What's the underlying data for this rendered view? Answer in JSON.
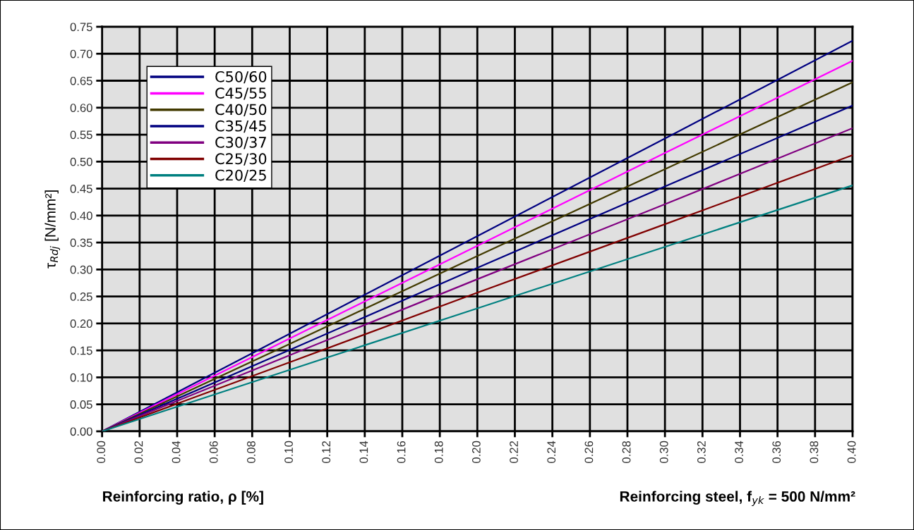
{
  "chart_data": {
    "type": "line",
    "xlabel": "Reinforcing ratio, ρ [%]",
    "ylabel": "τ$_{Rdj}$ [N/mm²]",
    "annotations": [
      "Reinforcing steel, f$_{yk}$ = 500 N/mm²"
    ],
    "x": [
      0.0,
      0.1,
      0.2,
      0.3,
      0.4
    ],
    "series": [
      {
        "name": "C50/60",
        "color": "#000080",
        "values": [
          0.0,
          0.181,
          0.362,
          0.543,
          0.724
        ]
      },
      {
        "name": "C45/55",
        "color": "#ff00ff",
        "values": [
          0.0,
          0.172,
          0.344,
          0.516,
          0.687
        ]
      },
      {
        "name": "C40/50",
        "color": "#423a00",
        "values": [
          0.0,
          0.162,
          0.325,
          0.486,
          0.647
        ]
      },
      {
        "name": "C35/45",
        "color": "#000080",
        "values": [
          0.0,
          0.151,
          0.303,
          0.454,
          0.604
        ]
      },
      {
        "name": "C30/37",
        "color": "#800080",
        "values": [
          0.0,
          0.141,
          0.282,
          0.421,
          0.562
        ]
      },
      {
        "name": "C25/30",
        "color": "#800000",
        "values": [
          0.0,
          0.128,
          0.257,
          0.384,
          0.512
        ]
      },
      {
        "name": "C20/25",
        "color": "#008080",
        "values": [
          0.0,
          0.114,
          0.228,
          0.342,
          0.456
        ]
      }
    ],
    "xlim": [
      0.0,
      0.4
    ],
    "xticks": [
      {
        "value": 0.0,
        "label": "0.00"
      },
      {
        "value": 0.02,
        "label": "0.02"
      },
      {
        "value": 0.04,
        "label": "0.04"
      },
      {
        "value": 0.06,
        "label": "0.06"
      },
      {
        "value": 0.08,
        "label": "0.08"
      },
      {
        "value": 0.1,
        "label": "0.10"
      },
      {
        "value": 0.12,
        "label": "0.12"
      },
      {
        "value": 0.14,
        "label": "0.14"
      },
      {
        "value": 0.16,
        "label": "0.16"
      },
      {
        "value": 0.18,
        "label": "0.18"
      },
      {
        "value": 0.2,
        "label": "0.20"
      },
      {
        "value": 0.22,
        "label": "0.22"
      },
      {
        "value": 0.24,
        "label": "0.24"
      },
      {
        "value": 0.26,
        "label": "0.26"
      },
      {
        "value": 0.28,
        "label": "0.28"
      },
      {
        "value": 0.3,
        "label": "0.30"
      },
      {
        "value": 0.32,
        "label": "0.32"
      },
      {
        "value": 0.34,
        "label": "0.34"
      },
      {
        "value": 0.36,
        "label": "0.36"
      },
      {
        "value": 0.38,
        "label": "0.38"
      },
      {
        "value": 0.4,
        "label": "0.40"
      }
    ],
    "ylim": [
      0.0,
      0.75
    ],
    "yticks": [
      {
        "value": 0.0,
        "label": "0.00"
      },
      {
        "value": 0.05,
        "label": "0.05"
      },
      {
        "value": 0.1,
        "label": "0.10"
      },
      {
        "value": 0.15,
        "label": "0.15"
      },
      {
        "value": 0.2,
        "label": "0.20"
      },
      {
        "value": 0.25,
        "label": "0.25"
      },
      {
        "value": 0.3,
        "label": "0.30"
      },
      {
        "value": 0.35,
        "label": "0.35"
      },
      {
        "value": 0.4,
        "label": "0.40"
      },
      {
        "value": 0.45,
        "label": "0.45"
      },
      {
        "value": 0.5,
        "label": "0.50"
      },
      {
        "value": 0.55,
        "label": "0.55"
      },
      {
        "value": 0.6,
        "label": "0.60"
      },
      {
        "value": 0.65,
        "label": "0.65"
      },
      {
        "value": 0.7,
        "label": "0.70"
      },
      {
        "value": 0.75,
        "label": "0.75"
      }
    ],
    "grid": true,
    "legend": "top left",
    "marker": "none",
    "line_style": "solid"
  }
}
